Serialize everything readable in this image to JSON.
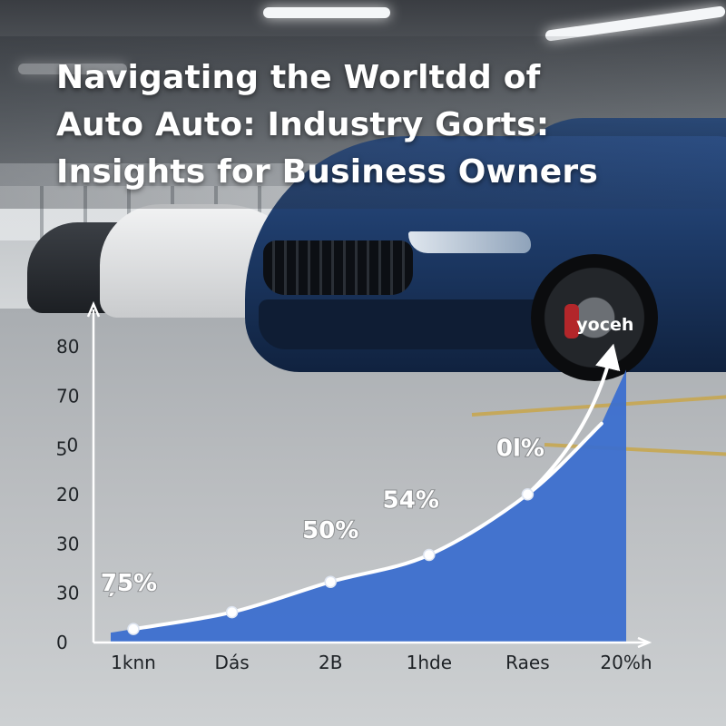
{
  "title_lines": [
    "Navigating the Worltdd of",
    "Auto Auto: Industry Gorts:",
    "Insights for Business Owners"
  ],
  "colors": {
    "area_fill": "#3c6fcf",
    "line": "#ffffff",
    "axis": "#ffffff",
    "title_text": "#ffffff"
  },
  "chart_data": {
    "type": "area",
    "categories": [
      "1knn",
      "Dás",
      "2B",
      "1hde",
      "Raes",
      "20%h"
    ],
    "y_tick_labels": [
      "0",
      "30",
      "30",
      "20",
      "ƽ0",
      "70",
      "80"
    ],
    "ylim": [
      0,
      90
    ],
    "points": [
      {
        "x": 0.25,
        "y": 4
      },
      {
        "x": 1.25,
        "y": 9
      },
      {
        "x": 2.25,
        "y": 18
      },
      {
        "x": 3.25,
        "y": 26
      },
      {
        "x": 4.25,
        "y": 44
      },
      {
        "x": 5.0,
        "y": 65
      }
    ],
    "data_labels": [
      {
        "text": "7̦5%",
        "point": 0
      },
      {
        "text": "50%",
        "point": 2
      },
      {
        "text": "54%",
        "point": 3
      },
      {
        "text": "0l%",
        "point": 4
      }
    ],
    "arrow_label": "yoceh",
    "xlabel": "",
    "ylabel": "",
    "grid": false,
    "legend": "none"
  }
}
